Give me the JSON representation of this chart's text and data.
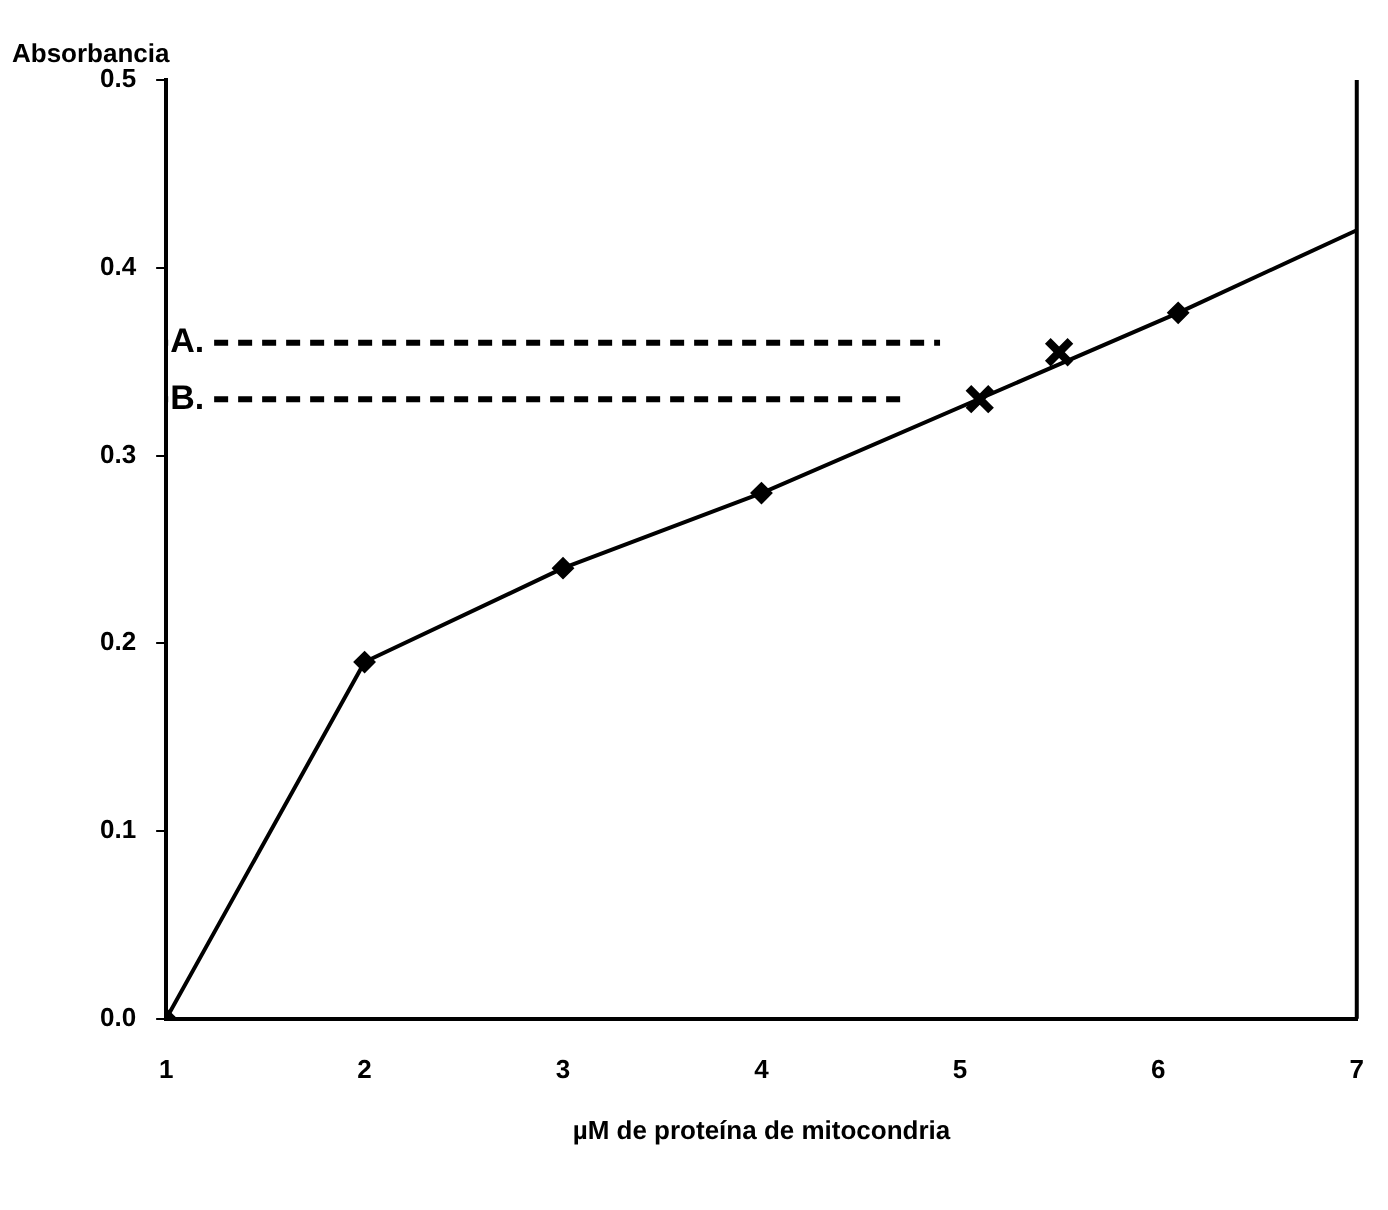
{
  "chart_data": {
    "type": "line",
    "xlabel": "µM de proteína de mitocondria",
    "ylabel": "Absorbancia",
    "xlim": [
      1,
      7
    ],
    "xticks": [
      1,
      2,
      3,
      4,
      5,
      6,
      7
    ],
    "ylim": [
      0,
      0.5
    ],
    "yticks": [
      {
        "value": 0,
        "label": "0.0"
      },
      {
        "value": 0.1,
        "label": "0.1"
      },
      {
        "value": 0.2,
        "label": "0.2"
      },
      {
        "value": 0.3,
        "label": "0.3"
      },
      {
        "value": 0.4,
        "label": "0.4"
      },
      {
        "value": 0.5,
        "label": "0.5"
      }
    ],
    "grid": false,
    "legend": false,
    "series": [
      {
        "type": "line",
        "color": "#000000",
        "marker": "diamond",
        "line_style": "solid",
        "x": [
          1,
          2,
          3,
          4,
          6.1
        ],
        "values": [
          0,
          0.19,
          0.24,
          0.28,
          0.376
        ]
      },
      {
        "type": "line",
        "color": "#000000",
        "marker": "none",
        "line_style": "solid",
        "x": [
          6.1,
          7
        ],
        "values": [
          0.376,
          0.42
        ]
      },
      {
        "type": "scatter",
        "color": "#000000",
        "marker": "cross",
        "x": [
          5.1,
          5.5
        ],
        "values": [
          0.33,
          0.355
        ]
      },
      {
        "type": "line",
        "name": "A.",
        "color": "#000000",
        "marker": "none",
        "line_style": "dashed",
        "x": [
          1,
          4.9
        ],
        "values": [
          0.36,
          0.36
        ]
      },
      {
        "type": "line",
        "name": "B.",
        "color": "#000000",
        "marker": "none",
        "line_style": "dashed",
        "x": [
          1,
          4.7
        ],
        "values": [
          0.33,
          0.33
        ]
      }
    ]
  }
}
